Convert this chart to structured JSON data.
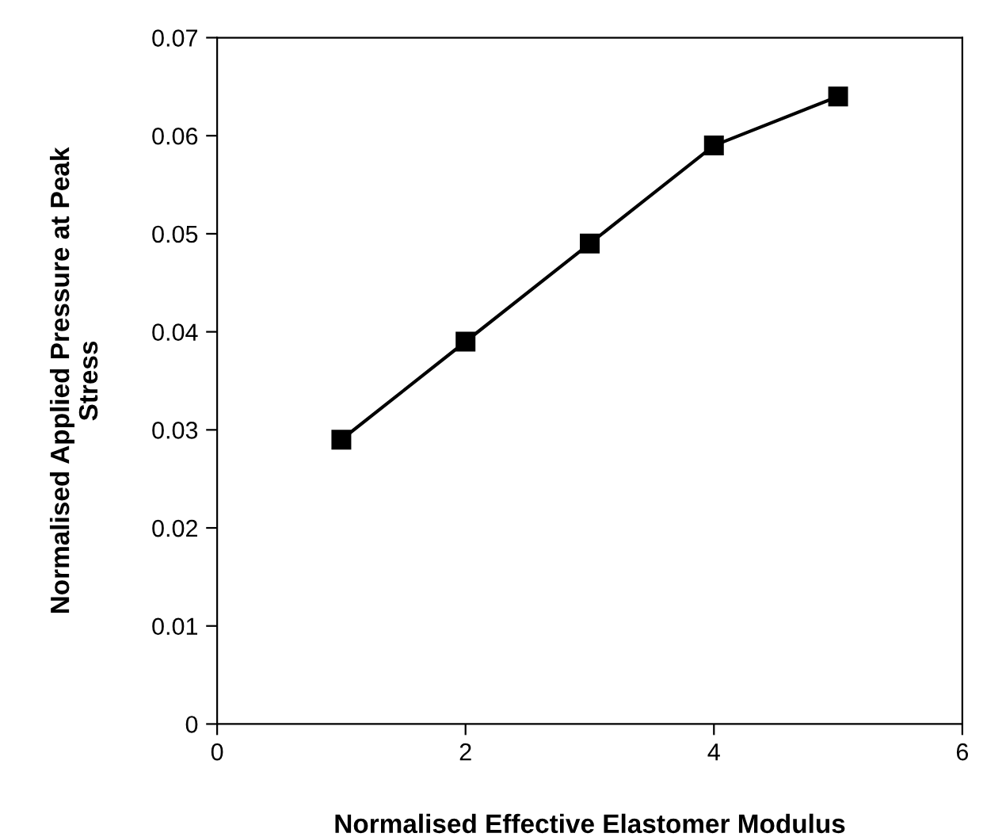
{
  "chart_data": {
    "type": "line",
    "xlabel": "Normalised Effective Elastomer Modulus",
    "ylabel": "Normalised Applied Pressure at Peak\nStress",
    "x": [
      1,
      2,
      3,
      4,
      5
    ],
    "series": [
      {
        "color": "#000000",
        "values": [
          0.029,
          0.039,
          0.049,
          0.059,
          0.064
        ]
      }
    ],
    "xlim": [
      0,
      6
    ],
    "xticks": [
      0,
      2,
      4,
      6
    ],
    "ylim": [
      0,
      0.07
    ],
    "yticks": [
      0,
      0.01,
      0.02,
      0.03,
      0.04,
      0.05,
      0.06,
      0.07
    ],
    "marker": "square",
    "line_style": "solid",
    "grid": false,
    "legend": false
  }
}
